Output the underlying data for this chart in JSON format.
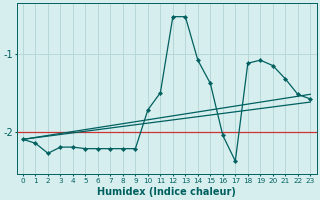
{
  "xlabel": "Humidex (Indice chaleur)",
  "background_color": "#d7eeee",
  "grid_color": "#b8d8d8",
  "line_color": "#006060",
  "red_line_color": "#cc3333",
  "x_data": [
    0,
    1,
    2,
    3,
    4,
    5,
    6,
    7,
    8,
    9,
    10,
    11,
    12,
    13,
    14,
    15,
    16,
    17,
    18,
    19,
    20,
    21,
    22,
    23
  ],
  "y_main": [
    -2.1,
    -2.15,
    -2.28,
    -2.2,
    -2.2,
    -2.22,
    -2.22,
    -2.22,
    -2.22,
    -2.22,
    -1.72,
    -1.5,
    -0.52,
    -0.52,
    -1.08,
    -1.38,
    -2.05,
    -2.38,
    -1.12,
    -1.08,
    -1.15,
    -1.32,
    -1.52,
    -1.58
  ],
  "y_trend1_x": [
    0,
    23
  ],
  "y_trend1_y": [
    -2.1,
    -1.52
  ],
  "y_trend2_x": [
    0,
    23
  ],
  "y_trend2_y": [
    -2.1,
    -1.62
  ],
  "ylim": [
    -2.55,
    -0.35
  ],
  "xlim": [
    -0.5,
    23.5
  ],
  "yticks": [
    -2,
    -1
  ],
  "xticks": [
    0,
    1,
    2,
    3,
    4,
    5,
    6,
    7,
    8,
    9,
    10,
    11,
    12,
    13,
    14,
    15,
    16,
    17,
    18,
    19,
    20,
    21,
    22,
    23
  ],
  "red_hline_y": -2.0,
  "xlabel_fontsize": 7,
  "ytick_fontsize": 7,
  "xtick_fontsize": 5.2
}
